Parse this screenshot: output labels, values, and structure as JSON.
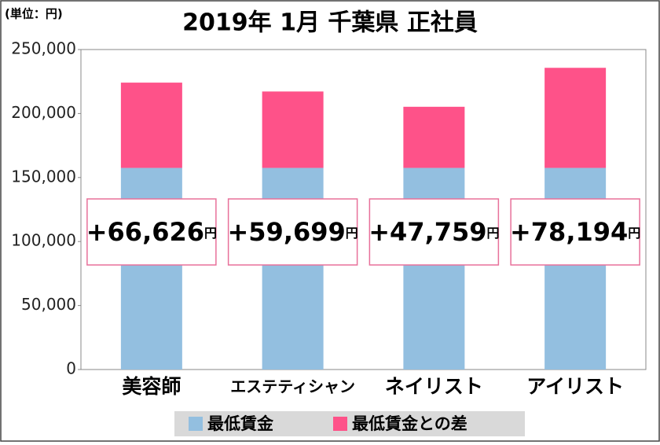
{
  "chart_data": {
    "type": "stacked_bar",
    "title": "2019年 1月 千葉県 正社員",
    "unit_note": "(単位：円)",
    "categories": [
      "美容師",
      "エステティシャン",
      "ネイリスト",
      "アイリスト"
    ],
    "series": [
      {
        "name": "最低賃金",
        "color": "#93bfe0",
        "values": [
          157520,
          157520,
          157520,
          157520
        ]
      },
      {
        "name": "最低賃金との差",
        "color": "#fe5289",
        "values": [
          66626,
          59699,
          47759,
          78194
        ],
        "value_labels": [
          "+66,626",
          "+59,699",
          "+47,759",
          "+78,194"
        ],
        "value_label_unit": "円"
      }
    ],
    "ylim": [
      0,
      250000
    ],
    "yticks": [
      0,
      {
        "value": 50000,
        "label": "50,000"
      },
      {
        "value": 100000,
        "label": "100,000"
      },
      {
        "value": 150000,
        "label": "150,000"
      },
      {
        "value": 200000,
        "label": "200,000"
      },
      {
        "value": 250000,
        "label": "250,000"
      }
    ],
    "grid": false
  }
}
